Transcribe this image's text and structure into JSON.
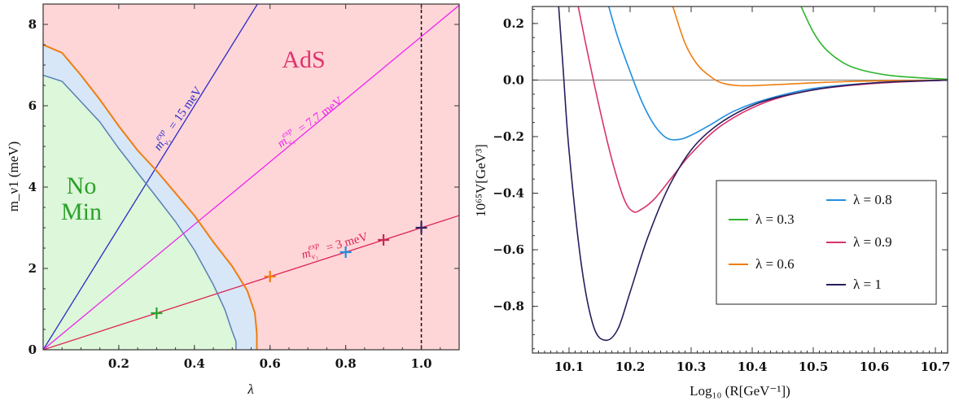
{
  "chart_data": [
    {
      "type": "area",
      "xlabel": "λ",
      "ylabel": "m_ν1 (meV)",
      "xlim": [
        0,
        1.1
      ],
      "ylim": [
        0,
        8.5
      ],
      "xticks": [
        0.2,
        0.4,
        0.6,
        0.8,
        1.0
      ],
      "xtick_labels": [
        "0.2",
        "0.4",
        "0.6",
        "0.8",
        "1.0"
      ],
      "yticks": [
        0,
        2,
        4,
        6,
        8
      ],
      "ytick_labels": [
        "0",
        "2",
        "4",
        "6",
        "8"
      ],
      "regions": [
        {
          "name": "No Min",
          "label_lines": [
            "No",
            "Min"
          ],
          "color": "#2ca02c",
          "fill": "#dcf7d9"
        },
        {
          "name": "AdS",
          "label_lines": [
            "AdS"
          ],
          "color": "#e0336e",
          "fill": "#ffd6d8"
        }
      ],
      "boundary_inner": {
        "color": "#5a7fb5",
        "x": [
          0.0,
          0.05,
          0.1,
          0.15,
          0.2,
          0.25,
          0.3,
          0.35,
          0.4,
          0.45,
          0.48,
          0.5,
          0.51,
          0.51
        ],
        "y": [
          6.75,
          6.6,
          6.1,
          5.6,
          4.95,
          4.35,
          3.75,
          3.15,
          2.45,
          1.6,
          1.0,
          0.45,
          0.2,
          0.0
        ]
      },
      "boundary_outer": {
        "color": "#f07d10",
        "x": [
          0.0,
          0.05,
          0.1,
          0.15,
          0.2,
          0.25,
          0.3,
          0.35,
          0.4,
          0.45,
          0.5,
          0.54,
          0.56,
          0.565,
          0.565
        ],
        "y": [
          7.5,
          7.3,
          6.75,
          6.15,
          5.5,
          4.9,
          4.4,
          3.85,
          3.3,
          2.65,
          2.05,
          1.45,
          0.9,
          0.4,
          0.0
        ]
      },
      "band_fill": "#d7e7f8",
      "lines": [
        {
          "label_exp": "exp",
          "value": "15 meV",
          "slope": 15,
          "color": "#2b2bc8"
        },
        {
          "label_exp": "exp",
          "value": "7.7 meV",
          "slope": 7.7,
          "color": "#ee22ee"
        },
        {
          "label_exp": "exp",
          "value": "3 meV",
          "slope": 3,
          "color": "#dd2456"
        }
      ],
      "markers": [
        {
          "x": 0.3,
          "y": 0.9,
          "color": "#2ca02c"
        },
        {
          "x": 0.6,
          "y": 1.8,
          "color": "#f07d10"
        },
        {
          "x": 0.8,
          "y": 2.4,
          "color": "#1f8fe0"
        },
        {
          "x": 0.9,
          "y": 2.7,
          "color": "#c8285a"
        },
        {
          "x": 1.0,
          "y": 3.0,
          "color": "#32215f"
        }
      ],
      "vline": {
        "x": 1.0,
        "style": "dashed"
      }
    },
    {
      "type": "line",
      "xlabel": "Log₁₀ (R[GeV⁻¹])",
      "ylabel": "10⁶⁵V[GeV³]",
      "xlim": [
        10.04,
        10.72
      ],
      "ylim": [
        -0.965,
        0.26
      ],
      "xticks": [
        10.1,
        10.2,
        10.3,
        10.4,
        10.5,
        10.6,
        10.7
      ],
      "xtick_labels": [
        "10.1",
        "10.2",
        "10.3",
        "10.4",
        "10.5",
        "10.6",
        "10.7"
      ],
      "yticks": [
        0.2,
        0.0,
        -0.2,
        -0.4,
        -0.6,
        -0.8
      ],
      "ytick_labels": [
        "0.2",
        "0.0",
        "−0.2",
        "−0.4",
        "−0.6",
        "−0.8"
      ],
      "series": [
        {
          "name": "λ = 0.3",
          "color": "#2fb52f",
          "x": [
            10.48,
            10.5,
            10.52,
            10.55,
            10.58,
            10.62,
            10.66,
            10.7,
            10.72
          ],
          "y": [
            0.26,
            0.17,
            0.11,
            0.06,
            0.035,
            0.018,
            0.01,
            0.005,
            0.003
          ]
        },
        {
          "name": "λ = 0.6",
          "color": "#f07d10",
          "x": [
            10.27,
            10.29,
            10.31,
            10.33,
            10.35,
            10.38,
            10.42,
            10.47,
            10.52,
            10.58,
            10.64,
            10.72
          ],
          "y": [
            0.26,
            0.13,
            0.055,
            0.015,
            -0.01,
            -0.02,
            -0.018,
            -0.013,
            -0.008,
            -0.004,
            -0.002,
            0.0
          ]
        },
        {
          "name": "λ = 0.8",
          "color": "#1f8fe0",
          "x": [
            10.165,
            10.18,
            10.2,
            10.22,
            10.24,
            10.26,
            10.28,
            10.3,
            10.33,
            10.37,
            10.42,
            10.5,
            10.6,
            10.72
          ],
          "y": [
            0.26,
            0.15,
            0.03,
            -0.08,
            -0.16,
            -0.205,
            -0.21,
            -0.195,
            -0.16,
            -0.11,
            -0.07,
            -0.03,
            -0.01,
            0.0
          ]
        },
        {
          "name": "λ = 0.9",
          "color": "#d8346b",
          "x": [
            10.115,
            10.13,
            10.15,
            10.17,
            10.19,
            10.205,
            10.22,
            10.24,
            10.27,
            10.3,
            10.35,
            10.42,
            10.5,
            10.6,
            10.72
          ],
          "y": [
            0.26,
            0.1,
            -0.1,
            -0.28,
            -0.42,
            -0.465,
            -0.455,
            -0.42,
            -0.34,
            -0.26,
            -0.16,
            -0.08,
            -0.035,
            -0.012,
            0.0
          ]
        },
        {
          "name": "λ = 1",
          "color": "#2a1d5c",
          "x": [
            10.083,
            10.09,
            10.1,
            10.12,
            10.14,
            10.16,
            10.18,
            10.2,
            10.23,
            10.27,
            10.32,
            10.4,
            10.5,
            10.6,
            10.72
          ],
          "y": [
            0.26,
            0.05,
            -0.25,
            -0.65,
            -0.87,
            -0.92,
            -0.88,
            -0.75,
            -0.55,
            -0.35,
            -0.2,
            -0.09,
            -0.035,
            -0.01,
            0.0
          ]
        }
      ],
      "hline": {
        "y": 0.0,
        "color": "#888888"
      },
      "legend_location": "center-right"
    }
  ]
}
